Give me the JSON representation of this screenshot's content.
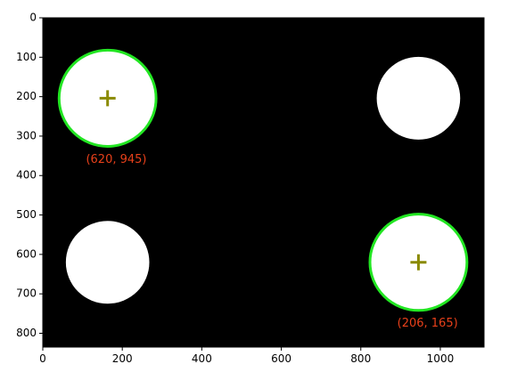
{
  "chart_data": {
    "type": "image",
    "title": "",
    "xlabel": "",
    "ylabel": "",
    "xlim": [
      0,
      1110
    ],
    "ylim": [
      835,
      0
    ],
    "xticks": [
      0,
      200,
      400,
      600,
      800,
      1000
    ],
    "yticks": [
      0,
      100,
      200,
      300,
      400,
      500,
      600,
      700,
      800
    ],
    "grid": false,
    "background_color": "#000000",
    "circles": [
      {
        "cx": 163,
        "cy": 204,
        "r": 122,
        "fill": "#ffffff",
        "detected": true
      },
      {
        "cx": 945,
        "cy": 204,
        "r": 105,
        "fill": "#ffffff",
        "detected": false
      },
      {
        "cx": 163,
        "cy": 620,
        "r": 105,
        "fill": "#ffffff",
        "detected": false
      },
      {
        "cx": 945,
        "cy": 620,
        "r": 122,
        "fill": "#ffffff",
        "detected": true
      }
    ],
    "detection_style": {
      "ring_color": "#22e622",
      "marker_color": "#8a8a00",
      "marker": "plus"
    },
    "annotations": [
      {
        "text": "(620, 945)",
        "x": 185,
        "y": 360,
        "color": "#e8401a"
      },
      {
        "text": "(206, 165)",
        "x": 968,
        "y": 775,
        "color": "#e8401a"
      }
    ]
  }
}
